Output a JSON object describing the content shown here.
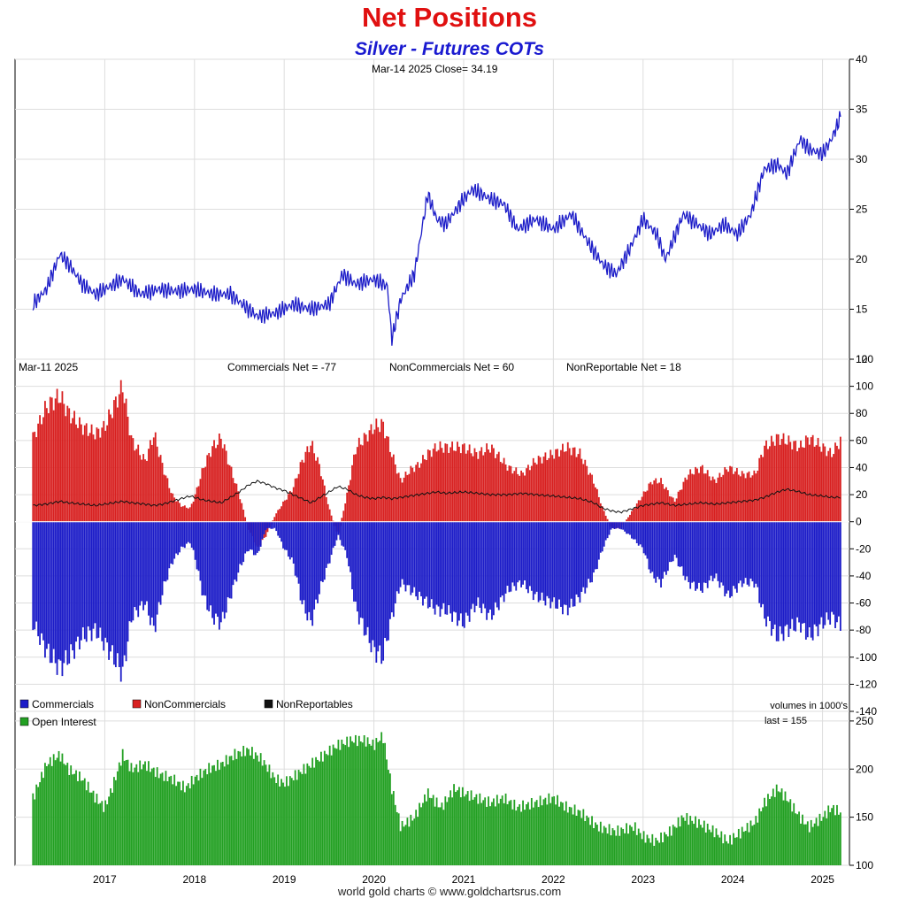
{
  "header": {
    "title": "Net Positions",
    "subtitle": "Silver - Futures COTs"
  },
  "footer": {
    "text": "world gold charts © www.goldchartsrus.com"
  },
  "chart_data": [
    {
      "type": "line",
      "panel": "price",
      "info": "Mar-14  2025   Close= 34.19",
      "series": [
        {
          "name": "",
          "color": "#1c1cc8"
        }
      ],
      "x_is_year": true,
      "ylim": [
        10,
        40
      ],
      "yticks": [
        10,
        15,
        20,
        25,
        30,
        35,
        40
      ],
      "grid": true,
      "x": [
        2016.2,
        2016.35,
        2016.5,
        2016.6,
        2016.75,
        2016.9,
        2017.0,
        2017.2,
        2017.4,
        2017.6,
        2017.8,
        2018.0,
        2018.2,
        2018.4,
        2018.6,
        2018.7,
        2018.9,
        2019.1,
        2019.3,
        2019.5,
        2019.65,
        2019.8,
        2020.0,
        2020.15,
        2020.2,
        2020.3,
        2020.45,
        2020.6,
        2020.7,
        2020.8,
        2021.0,
        2021.1,
        2021.3,
        2021.45,
        2021.6,
        2021.8,
        2022.0,
        2022.2,
        2022.4,
        2022.55,
        2022.7,
        2022.85,
        2023.0,
        2023.15,
        2023.25,
        2023.45,
        2023.6,
        2023.75,
        2023.9,
        2024.05,
        2024.2,
        2024.35,
        2024.5,
        2024.6,
        2024.75,
        2024.85,
        2025.0,
        2025.1,
        2025.2
      ],
      "values": [
        15.5,
        17.0,
        20.5,
        19.5,
        17.5,
        16.5,
        17.0,
        18.0,
        16.5,
        17.0,
        16.8,
        17.0,
        16.5,
        16.5,
        15.0,
        14.3,
        14.6,
        15.5,
        15.0,
        15.5,
        18.5,
        17.5,
        18.0,
        17.3,
        12.0,
        16.0,
        18.5,
        26.5,
        24.0,
        23.5,
        26.0,
        27.0,
        26.0,
        25.5,
        23.0,
        24.0,
        23.0,
        24.5,
        21.5,
        19.5,
        18.5,
        21.0,
        24.0,
        22.5,
        20.0,
        24.5,
        23.5,
        22.5,
        23.5,
        22.5,
        24.5,
        29.0,
        29.5,
        28.5,
        32.0,
        31.0,
        30.5,
        32.0,
        34.19
      ]
    },
    {
      "type": "bar",
      "panel": "net_positions",
      "info_date": "Mar-11  2025",
      "info_comm": "Commercials Net = -77",
      "info_noncomm": "NonCommercials Net = 60",
      "info_nonrep": "NonReportable Net = 18",
      "note": "volumes in 1000's",
      "ylim": [
        -140,
        120
      ],
      "yticks": [
        -140,
        -120,
        -100,
        -80,
        -60,
        -40,
        -20,
        0,
        20,
        40,
        60,
        80,
        100,
        120
      ],
      "x_is_year": true,
      "x": [
        2016.2,
        2016.35,
        2016.5,
        2016.6,
        2016.75,
        2016.9,
        2017.0,
        2017.1,
        2017.2,
        2017.3,
        2017.45,
        2017.55,
        2017.65,
        2017.75,
        2017.85,
        2017.95,
        2018.0,
        2018.1,
        2018.2,
        2018.3,
        2018.4,
        2018.5,
        2018.6,
        2018.7,
        2018.8,
        2018.9,
        2019.0,
        2019.1,
        2019.2,
        2019.3,
        2019.4,
        2019.5,
        2019.6,
        2019.7,
        2019.8,
        2019.9,
        2020.0,
        2020.1,
        2020.2,
        2020.3,
        2020.4,
        2020.5,
        2020.6,
        2020.7,
        2020.8,
        2021.0,
        2021.15,
        2021.3,
        2021.5,
        2021.65,
        2021.8,
        2022.0,
        2022.15,
        2022.3,
        2022.45,
        2022.55,
        2022.65,
        2022.75,
        2022.85,
        2023.0,
        2023.1,
        2023.2,
        2023.35,
        2023.5,
        2023.65,
        2023.8,
        2023.95,
        2024.1,
        2024.25,
        2024.35,
        2024.5,
        2024.6,
        2024.75,
        2024.85,
        2025.0,
        2025.1,
        2025.2
      ],
      "series": [
        {
          "name": "Commercials",
          "color": "#1c1cc8",
          "values": [
            -75,
            -95,
            -108,
            -100,
            -85,
            -80,
            -90,
            -100,
            -112,
            -70,
            -60,
            -80,
            -50,
            -30,
            -20,
            -15,
            -25,
            -55,
            -70,
            -75,
            -55,
            -35,
            -20,
            -25,
            -5,
            -5,
            -20,
            -30,
            -60,
            -75,
            -50,
            -30,
            -10,
            -25,
            -65,
            -80,
            -95,
            -100,
            -70,
            -45,
            -50,
            -55,
            -60,
            -65,
            -65,
            -75,
            -60,
            -70,
            -50,
            -45,
            -55,
            -60,
            -65,
            -55,
            -40,
            -20,
            -5,
            -5,
            -10,
            -20,
            -40,
            -45,
            -25,
            -45,
            -50,
            -40,
            -55,
            -45,
            -45,
            -70,
            -85,
            -80,
            -75,
            -85,
            -75,
            -70,
            -77
          ]
        },
        {
          "name": "NonCommercials",
          "color": "#d82020",
          "values": [
            62,
            85,
            93,
            80,
            70,
            65,
            70,
            85,
            100,
            60,
            45,
            65,
            40,
            20,
            12,
            10,
            18,
            40,
            55,
            62,
            40,
            20,
            -5,
            -20,
            -10,
            5,
            15,
            25,
            45,
            58,
            40,
            10,
            -10,
            20,
            55,
            62,
            70,
            72,
            50,
            30,
            38,
            42,
            50,
            55,
            55,
            55,
            50,
            55,
            40,
            35,
            45,
            50,
            55,
            50,
            30,
            10,
            -5,
            -5,
            5,
            20,
            30,
            30,
            15,
            35,
            40,
            30,
            40,
            35,
            35,
            55,
            62,
            60,
            55,
            62,
            55,
            50,
            60
          ]
        },
        {
          "name": "NonReportables",
          "color": "#111111",
          "values": [
            12,
            13,
            15,
            14,
            13,
            12,
            13,
            14,
            15,
            14,
            13,
            12,
            13,
            15,
            17,
            19,
            18,
            16,
            15,
            14,
            18,
            22,
            27,
            30,
            28,
            25,
            23,
            20,
            17,
            14,
            18,
            22,
            26,
            24,
            20,
            18,
            17,
            18,
            17,
            18,
            19,
            20,
            21,
            22,
            21,
            22,
            21,
            20,
            20,
            21,
            20,
            19,
            18,
            17,
            14,
            10,
            8,
            7,
            9,
            12,
            13,
            14,
            12,
            13,
            14,
            13,
            14,
            15,
            16,
            18,
            22,
            24,
            22,
            20,
            19,
            18,
            18
          ]
        }
      ]
    },
    {
      "type": "bar",
      "panel": "open_interest",
      "info": "last = 155",
      "series": [
        {
          "name": "Open Interest",
          "color": "#22a022"
        }
      ],
      "ylim": [
        100,
        260
      ],
      "yticks": [
        100,
        150,
        200,
        250
      ],
      "x_is_year": true,
      "xticks": [
        "2017",
        "2018",
        "2019",
        "2020",
        "2021",
        "2022",
        "2023",
        "2024",
        "2025"
      ],
      "x": [
        2016.2,
        2016.35,
        2016.5,
        2016.6,
        2016.75,
        2016.9,
        2017.0,
        2017.1,
        2017.2,
        2017.3,
        2017.45,
        2017.6,
        2017.75,
        2017.9,
        2018.0,
        2018.15,
        2018.3,
        2018.45,
        2018.6,
        2018.75,
        2018.9,
        2019.0,
        2019.15,
        2019.3,
        2019.45,
        2019.6,
        2019.75,
        2019.9,
        2020.0,
        2020.1,
        2020.2,
        2020.3,
        2020.45,
        2020.6,
        2020.75,
        2020.9,
        2021.0,
        2021.15,
        2021.3,
        2021.45,
        2021.6,
        2021.8,
        2022.0,
        2022.15,
        2022.3,
        2022.5,
        2022.7,
        2022.9,
        2023.0,
        2023.15,
        2023.3,
        2023.45,
        2023.6,
        2023.8,
        2023.95,
        2024.1,
        2024.25,
        2024.35,
        2024.5,
        2024.6,
        2024.75,
        2024.85,
        2025.0,
        2025.1,
        2025.2
      ],
      "values": [
        170,
        205,
        215,
        200,
        190,
        170,
        160,
        185,
        215,
        200,
        205,
        195,
        190,
        180,
        190,
        200,
        205,
        215,
        220,
        210,
        190,
        185,
        195,
        205,
        215,
        225,
        230,
        230,
        225,
        235,
        180,
        140,
        150,
        175,
        160,
        180,
        175,
        170,
        165,
        170,
        160,
        165,
        170,
        160,
        155,
        140,
        135,
        140,
        130,
        125,
        135,
        150,
        145,
        135,
        125,
        135,
        145,
        165,
        180,
        170,
        150,
        140,
        150,
        160,
        155
      ]
    }
  ]
}
